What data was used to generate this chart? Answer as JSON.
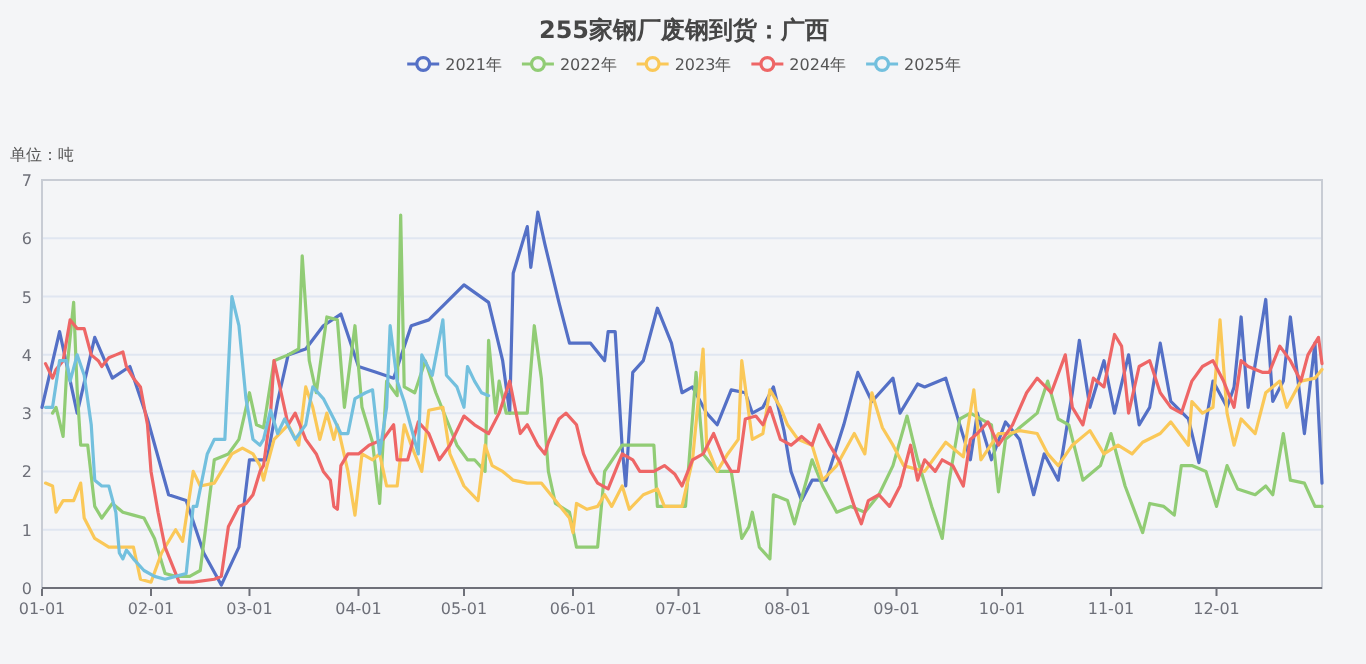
{
  "chart_data": {
    "type": "line",
    "title": "255家钢厂废钢到货：广西",
    "ylabel": "单位：吨",
    "legend": "top",
    "grid": "y",
    "xlim": [
      "--01-01",
      "--12-31"
    ],
    "ylim": [
      0,
      7
    ],
    "yticks": [
      0,
      1,
      2,
      3,
      4,
      5,
      6,
      7
    ],
    "xticks": [
      {
        "value": "--01-01",
        "label": "01-01"
      },
      {
        "value": "--02-01",
        "label": "02-01"
      },
      {
        "value": "--03-01",
        "label": "03-01"
      },
      {
        "value": "--04-01",
        "label": "04-01"
      },
      {
        "value": "--05-01",
        "label": "05-01"
      },
      {
        "value": "--06-01",
        "label": "06-01"
      },
      {
        "value": "--07-01",
        "label": "07-01"
      },
      {
        "value": "--08-01",
        "label": "08-01"
      },
      {
        "value": "--09-01",
        "label": "09-01"
      },
      {
        "value": "--10-01",
        "label": "10-01"
      },
      {
        "value": "--11-01",
        "label": "11-01"
      },
      {
        "value": "--12-01",
        "label": "12-01"
      }
    ],
    "series": [
      {
        "name": "2021年",
        "color": "#5470c6",
        "x": [
          "--01-01",
          "--01-06",
          "--01-11",
          "--01-16",
          "--01-21",
          "--01-26",
          "--01-31",
          "--02-06",
          "--02-11",
          "--02-16",
          "--02-21",
          "--02-26",
          "--03-01",
          "--03-06",
          "--03-09",
          "--03-12",
          "--03-17",
          "--03-22",
          "--03-27",
          "--04-01",
          "--04-06",
          "--04-11",
          "--04-16",
          "--04-21",
          "--04-26",
          "--05-01",
          "--05-08",
          "--05-12",
          "--05-14",
          "--05-15",
          "--05-19",
          "--05-20",
          "--05-22",
          "--05-24",
          "--05-28",
          "--05-31",
          "--06-06",
          "--06-10",
          "--06-11",
          "--06-13",
          "--06-15",
          "--06-16",
          "--06-18",
          "--06-21",
          "--06-25",
          "--06-29",
          "--07-02",
          "--07-05",
          "--07-09",
          "--07-12",
          "--07-16",
          "--07-20",
          "--07-22",
          "--07-25",
          "--07-28",
          "--07-31",
          "--08-02",
          "--08-05",
          "--08-08",
          "--08-12",
          "--08-17",
          "--08-21",
          "--08-25",
          "--08-31",
          "--09-02",
          "--09-07",
          "--09-09",
          "--09-15",
          "--09-18",
          "--09-22",
          "--09-24",
          "--09-28",
          "--10-02",
          "--10-06",
          "--10-10",
          "--10-13",
          "--10-17",
          "--10-21",
          "--10-23",
          "--10-26",
          "--10-30",
          "--11-02",
          "--11-06",
          "--11-09",
          "--11-12",
          "--11-15",
          "--11-18",
          "--11-23",
          "--11-26",
          "--11-30",
          "--12-04",
          "--12-06",
          "--12-08",
          "--12-10",
          "--12-15",
          "--12-17",
          "--12-20",
          "--12-22",
          "--12-26",
          "--12-29",
          "--12-31"
        ],
        "values": [
          3.1,
          4.4,
          3.0,
          4.3,
          3.6,
          3.8,
          2.9,
          1.6,
          1.5,
          0.6,
          0.05,
          0.7,
          2.2,
          2.2,
          3.2,
          4.0,
          4.1,
          4.5,
          4.7,
          3.8,
          3.7,
          3.6,
          4.5,
          4.6,
          4.9,
          5.2,
          4.9,
          3.9,
          3.0,
          5.4,
          6.2,
          5.5,
          6.45,
          5.9,
          4.9,
          4.2,
          4.2,
          3.9,
          4.4,
          4.4,
          2.4,
          1.75,
          3.7,
          3.9,
          4.8,
          4.2,
          3.35,
          3.45,
          3.0,
          2.8,
          3.4,
          3.35,
          3.0,
          3.1,
          3.45,
          2.7,
          2.0,
          1.5,
          1.85,
          1.85,
          2.8,
          3.7,
          3.2,
          3.6,
          3.0,
          3.5,
          3.45,
          3.6,
          3.0,
          2.2,
          3.0,
          2.2,
          2.85,
          2.55,
          1.6,
          2.3,
          1.85,
          3.35,
          4.25,
          3.1,
          3.9,
          3.0,
          4.0,
          2.8,
          3.1,
          4.2,
          3.2,
          2.9,
          2.15,
          3.55,
          3.1,
          3.45,
          4.65,
          3.1,
          4.95,
          3.2,
          3.55,
          4.65,
          2.65,
          4.2,
          1.8
        ]
      },
      {
        "name": "2022年",
        "color": "#91cc75",
        "x": [
          "--01-04",
          "--01-05",
          "--01-07",
          "--01-08",
          "--01-10",
          "--01-11",
          "--01-12",
          "--01-14",
          "--01-16",
          "--01-18",
          "--01-21",
          "--01-24",
          "--01-27",
          "--01-30",
          "--02-02",
          "--02-05",
          "--02-08",
          "--02-12",
          "--02-15",
          "--02-19",
          "--02-23",
          "--02-26",
          "--03-01",
          "--03-03",
          "--03-05",
          "--03-08",
          "--03-12",
          "--03-15",
          "--03-16",
          "--03-18",
          "--03-20",
          "--03-23",
          "--03-26",
          "--03-28",
          "--03-31",
          "--04-02",
          "--04-05",
          "--04-07",
          "--04-09",
          "--04-12",
          "--04-13",
          "--04-14",
          "--04-17",
          "--04-20",
          "--04-23",
          "--04-26",
          "--04-29",
          "--05-02",
          "--05-04",
          "--05-07",
          "--05-08",
          "--05-10",
          "--05-11",
          "--05-13",
          "--05-19",
          "--05-21",
          "--05-23",
          "--05-25",
          "--05-27",
          "--05-31",
          "--06-02",
          "--06-08",
          "--06-10",
          "--06-15",
          "--06-24",
          "--06-25",
          "--07-03",
          "--07-06",
          "--07-08",
          "--07-12",
          "--07-16",
          "--07-19",
          "--07-21",
          "--07-22",
          "--07-24",
          "--07-27",
          "--07-28",
          "--08-01",
          "--08-03",
          "--08-08",
          "--08-11",
          "--08-15",
          "--08-19",
          "--08-23",
          "--08-27",
          "--08-31",
          "--09-04",
          "--09-07",
          "--09-11",
          "--09-14",
          "--09-16",
          "--09-19",
          "--09-22",
          "--09-28",
          "--09-30",
          "--10-02",
          "--10-09",
          "--10-11",
          "--10-14",
          "--10-17",
          "--10-20",
          "--10-24",
          "--10-29",
          "--11-01",
          "--11-05",
          "--11-10",
          "--11-12",
          "--11-16",
          "--11-19",
          "--11-21",
          "--11-24",
          "--11-28",
          "--12-01",
          "--12-04",
          "--12-07",
          "--12-12",
          "--12-15",
          "--12-17",
          "--12-20",
          "--12-22",
          "--12-26",
          "--12-29",
          "--12-31"
        ],
        "values": [
          3.0,
          3.1,
          2.6,
          3.7,
          4.9,
          3.4,
          2.45,
          2.45,
          1.4,
          1.2,
          1.45,
          1.3,
          1.25,
          1.2,
          0.85,
          0.25,
          0.2,
          0.2,
          0.3,
          2.2,
          2.3,
          2.55,
          3.35,
          2.8,
          2.75,
          3.9,
          4.0,
          4.1,
          5.7,
          3.9,
          3.35,
          4.65,
          4.6,
          3.1,
          4.5,
          3.1,
          2.5,
          1.45,
          3.55,
          3.3,
          6.4,
          3.45,
          3.35,
          3.9,
          3.35,
          2.9,
          2.45,
          2.2,
          2.2,
          2.0,
          4.25,
          3.0,
          3.55,
          3.0,
          3.0,
          4.5,
          3.6,
          2.0,
          1.45,
          1.3,
          0.7,
          0.7,
          2.0,
          2.45,
          2.45,
          1.4,
          1.4,
          3.7,
          2.3,
          2.0,
          2.0,
          0.85,
          1.05,
          1.3,
          0.7,
          0.5,
          1.6,
          1.5,
          1.1,
          2.2,
          1.75,
          1.3,
          1.4,
          1.3,
          1.6,
          2.1,
          2.95,
          2.2,
          1.4,
          0.85,
          1.85,
          2.9,
          3.0,
          2.8,
          1.65,
          2.55,
          2.9,
          3.0,
          3.55,
          2.9,
          2.8,
          1.85,
          2.1,
          2.65,
          1.75,
          0.95,
          1.45,
          1.4,
          1.25,
          2.1,
          2.1,
          2.0,
          1.4,
          2.1,
          1.7,
          1.6,
          1.75,
          1.6,
          2.65,
          1.85,
          1.8,
          1.4,
          1.4
        ]
      },
      {
        "name": "2023年",
        "color": "#fac858",
        "x": [
          "--01-02",
          "--01-04",
          "--01-05",
          "--01-07",
          "--01-10",
          "--01-12",
          "--01-13",
          "--01-16",
          "--01-20",
          "--01-27",
          "--01-29",
          "--02-01",
          "--02-04",
          "--02-08",
          "--02-10",
          "--02-11",
          "--02-13",
          "--02-15",
          "--02-19",
          "--02-22",
          "--02-24",
          "--02-27",
          "--03-02",
          "--03-04",
          "--03-05",
          "--03-06",
          "--03-08",
          "--03-12",
          "--03-15",
          "--03-17",
          "--03-19",
          "--03-21",
          "--03-23",
          "--03-25",
          "--03-26",
          "--03-29",
          "--03-31",
          "--04-02",
          "--04-05",
          "--04-07",
          "--04-09",
          "--04-12",
          "--04-14",
          "--04-16",
          "--04-19",
          "--04-21",
          "--04-25",
          "--04-27",
          "--05-01",
          "--05-05",
          "--05-07",
          "--05-09",
          "--05-12",
          "--05-15",
          "--05-19",
          "--05-23",
          "--05-27",
          "--05-31",
          "--06-01",
          "--06-02",
          "--06-05",
          "--06-08",
          "--06-10",
          "--06-12",
          "--06-15",
          "--06-17",
          "--06-21",
          "--06-25",
          "--06-27",
          "--07-02",
          "--07-05",
          "--07-08",
          "--07-09",
          "--07-12",
          "--07-15",
          "--07-18",
          "--07-19",
          "--07-22",
          "--07-25",
          "--07-27",
          "--07-30",
          "--08-01",
          "--08-04",
          "--08-08",
          "--08-11",
          "--08-15",
          "--08-20",
          "--08-23",
          "--08-25",
          "--08-28",
          "--08-31",
          "--09-03",
          "--09-09",
          "--09-15",
          "--09-20",
          "--09-23",
          "--09-25",
          "--09-30",
          "--10-03",
          "--10-06",
          "--10-11",
          "--10-14",
          "--10-17",
          "--10-21",
          "--10-26",
          "--10-30",
          "--11-03",
          "--11-07",
          "--11-10",
          "--11-15",
          "--11-18",
          "--11-23",
          "--11-24",
          "--11-27",
          "--11-30",
          "--12-02",
          "--12-04",
          "--12-06",
          "--12-08",
          "--12-12",
          "--12-15",
          "--12-19",
          "--12-21",
          "--12-25",
          "--12-29",
          "--12-31"
        ],
        "values": [
          1.8,
          1.75,
          1.3,
          1.5,
          1.5,
          1.8,
          1.2,
          0.85,
          0.7,
          0.7,
          0.15,
          0.1,
          0.6,
          1.0,
          0.8,
          1.2,
          2.0,
          1.75,
          1.8,
          2.1,
          2.3,
          2.4,
          2.3,
          2.1,
          1.85,
          2.1,
          2.55,
          2.8,
          2.45,
          3.45,
          3.1,
          2.55,
          3.0,
          2.55,
          2.8,
          2.0,
          1.25,
          2.3,
          2.2,
          2.3,
          1.75,
          1.75,
          2.8,
          2.45,
          2.0,
          3.05,
          3.1,
          2.3,
          1.75,
          1.5,
          2.45,
          2.1,
          2.0,
          1.85,
          1.8,
          1.8,
          1.5,
          1.2,
          0.95,
          1.45,
          1.35,
          1.4,
          1.6,
          1.4,
          1.75,
          1.35,
          1.6,
          1.7,
          1.4,
          1.4,
          2.2,
          4.1,
          2.45,
          2.0,
          2.3,
          2.55,
          3.9,
          2.55,
          2.65,
          3.4,
          3.1,
          2.8,
          2.55,
          2.45,
          1.85,
          2.1,
          2.65,
          2.3,
          3.35,
          2.75,
          2.45,
          2.1,
          2.0,
          2.5,
          2.25,
          3.4,
          2.2,
          2.65,
          2.65,
          2.7,
          2.65,
          2.3,
          2.1,
          2.45,
          2.7,
          2.3,
          2.45,
          2.3,
          2.5,
          2.65,
          2.85,
          2.45,
          3.2,
          3.0,
          3.1,
          4.6,
          3.0,
          2.45,
          2.9,
          2.65,
          3.35,
          3.55,
          3.1,
          3.55,
          3.6,
          3.75
        ]
      },
      {
        "name": "2024年",
        "color": "#ee6666",
        "x": [
          "--01-02",
          "--01-04",
          "--01-05",
          "--01-07",
          "--01-09",
          "--01-11",
          "--01-13",
          "--01-15",
          "--01-17",
          "--01-18",
          "--01-20",
          "--01-22",
          "--01-24",
          "--01-25",
          "--01-27",
          "--01-29",
          "--01-31",
          "--02-01",
          "--02-03",
          "--02-05",
          "--02-07",
          "--02-09",
          "--02-13",
          "--02-19",
          "--02-21",
          "--02-23",
          "--02-26",
          "--02-28",
          "--03-02",
          "--03-04",
          "--03-05",
          "--03-07",
          "--03-08",
          "--03-10",
          "--03-12",
          "--03-14",
          "--03-17",
          "--03-20",
          "--03-22",
          "--03-24",
          "--03-25",
          "--03-26",
          "--03-27",
          "--03-29",
          "--04-01",
          "--04-04",
          "--04-08",
          "--04-11",
          "--04-12",
          "--04-15",
          "--04-18",
          "--04-21",
          "--04-24",
          "--04-27",
          "--05-01",
          "--05-04",
          "--05-08",
          "--05-11",
          "--05-14",
          "--05-17",
          "--05-19",
          "--05-22",
          "--05-24",
          "--05-25",
          "--05-28",
          "--05-30",
          "--06-02",
          "--06-04",
          "--06-06",
          "--06-08",
          "--06-11",
          "--06-13",
          "--06-15",
          "--06-18",
          "--06-20",
          "--06-24",
          "--06-27",
          "--06-30",
          "--07-02",
          "--07-05",
          "--07-08",
          "--07-11",
          "--07-14",
          "--07-16",
          "--07-18",
          "--07-20",
          "--07-23",
          "--07-25",
          "--07-27",
          "--07-30",
          "--08-02",
          "--08-05",
          "--08-08",
          "--08-10",
          "--08-13",
          "--08-16",
          "--08-20",
          "--08-22",
          "--08-24",
          "--08-27",
          "--08-30",
          "--09-02",
          "--09-05",
          "--09-07",
          "--09-09",
          "--09-12",
          "--09-14",
          "--09-17",
          "--09-20",
          "--09-22",
          "--09-24",
          "--09-27",
          "--09-30",
          "--10-04",
          "--10-08",
          "--10-11",
          "--10-15",
          "--10-19",
          "--10-21",
          "--10-24",
          "--10-27",
          "--10-30",
          "--11-02",
          "--11-04",
          "--11-06",
          "--11-09",
          "--11-12",
          "--11-15",
          "--11-18",
          "--11-21",
          "--11-24",
          "--11-27",
          "--11-30",
          "--12-03",
          "--12-06",
          "--12-08",
          "--12-10",
          "--12-14",
          "--12-16",
          "--12-19",
          "--12-22",
          "--12-25",
          "--12-27",
          "--12-30",
          "--12-31"
        ],
        "values": [
          3.85,
          3.6,
          3.75,
          3.9,
          4.6,
          4.45,
          4.45,
          4.0,
          3.9,
          3.8,
          3.95,
          4.0,
          4.05,
          3.8,
          3.6,
          3.45,
          2.8,
          2.0,
          1.3,
          0.7,
          0.4,
          0.1,
          0.1,
          0.15,
          0.2,
          1.05,
          1.4,
          1.45,
          1.6,
          2.0,
          2.1,
          3.0,
          3.9,
          3.35,
          2.8,
          3.0,
          2.55,
          2.3,
          2.0,
          1.85,
          1.4,
          1.35,
          2.1,
          2.3,
          2.3,
          2.45,
          2.55,
          2.8,
          2.2,
          2.2,
          2.85,
          2.65,
          2.2,
          2.45,
          2.95,
          2.8,
          2.65,
          3.0,
          3.55,
          2.65,
          2.8,
          2.45,
          2.3,
          2.5,
          2.9,
          3.0,
          2.8,
          2.3,
          2.0,
          1.8,
          1.7,
          2.0,
          2.3,
          2.2,
          2.0,
          2.0,
          2.1,
          1.95,
          1.75,
          2.2,
          2.3,
          2.65,
          2.2,
          2.0,
          2.0,
          2.9,
          2.95,
          2.8,
          3.1,
          2.55,
          2.45,
          2.6,
          2.45,
          2.8,
          2.45,
          2.15,
          1.4,
          1.1,
          1.5,
          1.6,
          1.4,
          1.75,
          2.45,
          1.85,
          2.2,
          2.0,
          2.2,
          2.1,
          1.75,
          2.55,
          2.65,
          2.85,
          2.45,
          2.8,
          3.35,
          3.6,
          3.35,
          4.0,
          3.1,
          2.8,
          3.6,
          3.45,
          4.35,
          4.15,
          3.0,
          3.8,
          3.9,
          3.35,
          3.1,
          3.0,
          3.55,
          3.8,
          3.9,
          3.55,
          3.1,
          3.9,
          3.8,
          3.7,
          3.7,
          4.15,
          3.9,
          3.55,
          4.0,
          4.3,
          3.85
        ]
      },
      {
        "name": "2025年",
        "color": "#73c0de",
        "x": [
          "--01-02",
          "--01-04",
          "--01-06",
          "--01-08",
          "--01-09",
          "--01-11",
          "--01-13",
          "--01-15",
          "--01-16",
          "--01-18",
          "--01-20",
          "--01-22",
          "--01-23",
          "--01-24",
          "--01-25",
          "--01-27",
          "--01-30",
          "--02-02",
          "--02-05",
          "--02-08",
          "--02-11",
          "--02-13",
          "--02-14",
          "--02-17",
          "--02-19",
          "--02-22",
          "--02-24",
          "--02-26",
          "--02-28",
          "--03-02",
          "--03-04",
          "--03-05",
          "--03-07",
          "--03-09",
          "--03-11",
          "--03-14",
          "--03-17",
          "--03-19",
          "--03-22",
          "--03-25",
          "--03-27",
          "--03-29",
          "--03-31",
          "--04-03",
          "--04-05",
          "--04-07",
          "--04-09",
          "--04-10",
          "--04-12",
          "--04-14",
          "--04-16",
          "--04-18",
          "--04-19",
          "--04-22",
          "--04-25",
          "--04-26",
          "--04-29",
          "--05-01",
          "--05-02",
          "--05-04",
          "--05-06",
          "--05-08"
        ],
        "values": [
          3.1,
          3.1,
          3.9,
          3.9,
          3.55,
          4.0,
          3.65,
          2.8,
          1.85,
          1.75,
          1.75,
          1.3,
          0.6,
          0.5,
          0.65,
          0.5,
          0.3,
          0.2,
          0.15,
          0.2,
          0.25,
          1.4,
          1.4,
          2.3,
          2.55,
          2.55,
          5.0,
          4.5,
          3.25,
          2.55,
          2.45,
          2.55,
          3.05,
          2.65,
          2.9,
          2.55,
          2.8,
          3.45,
          3.25,
          2.9,
          2.65,
          2.65,
          3.25,
          3.35,
          3.4,
          2.3,
          3.1,
          4.5,
          3.55,
          3.2,
          2.75,
          2.3,
          4.0,
          3.65,
          4.6,
          3.65,
          3.45,
          3.1,
          3.8,
          3.55,
          3.35,
          3.3
        ]
      }
    ]
  }
}
